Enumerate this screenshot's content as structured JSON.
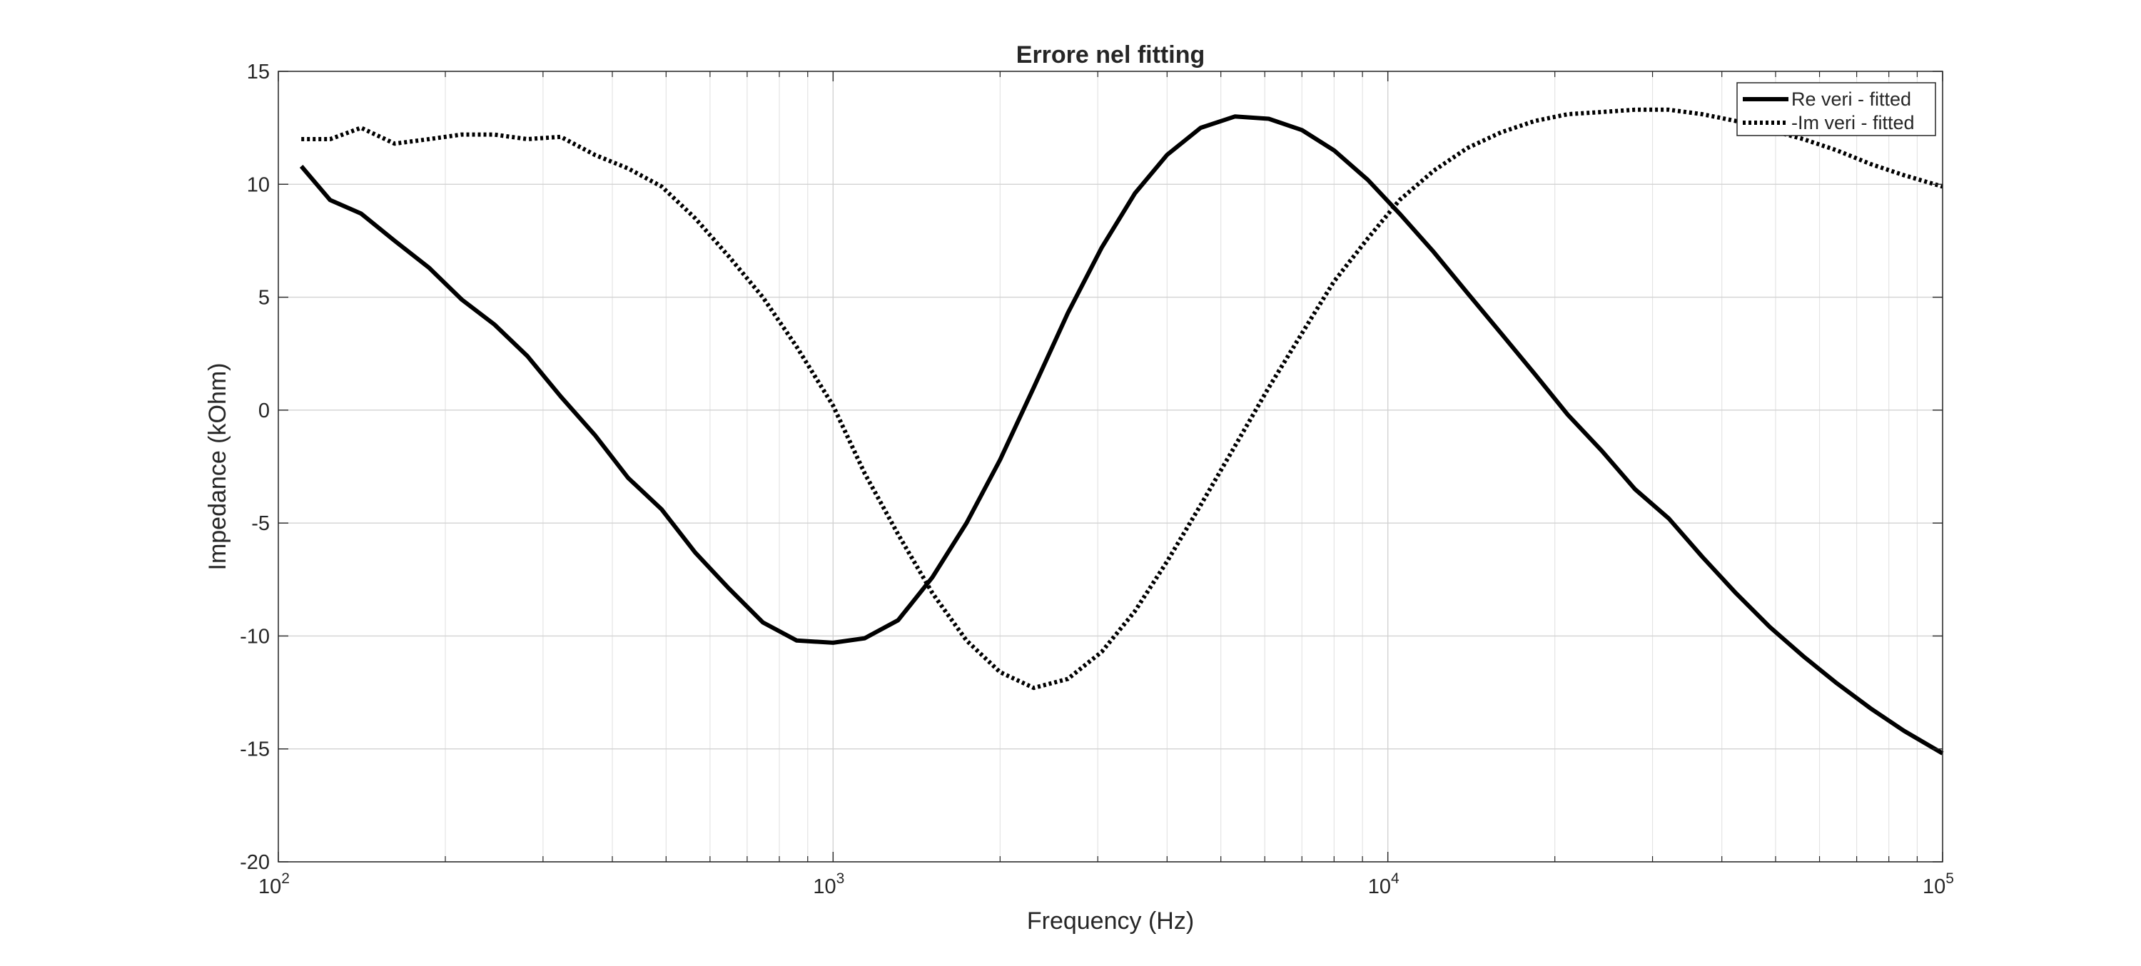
{
  "chart_data": {
    "type": "line",
    "title": "Errore nel fitting",
    "xlabel": "Frequency (Hz)",
    "ylabel": "Impedance (kOhm)",
    "xscale": "log",
    "xlim": [
      100,
      100000
    ],
    "ylim": [
      -20,
      15
    ],
    "grid": true,
    "legend_placement": "top-right",
    "x_ticks": [
      {
        "base": "10",
        "exp": "2"
      },
      {
        "base": "10",
        "exp": "3"
      },
      {
        "base": "10",
        "exp": "4"
      },
      {
        "base": "10",
        "exp": "5"
      }
    ],
    "y_ticks": [
      "15",
      "10",
      "5",
      "0",
      "-5",
      "-10",
      "-15",
      "-20"
    ],
    "y_tick_values": [
      15,
      10,
      5,
      0,
      -5,
      -10,
      -15,
      -20
    ],
    "x": [
      110,
      124,
      141,
      162,
      187,
      214,
      245,
      281,
      323,
      372,
      427,
      491,
      564,
      649,
      747,
      860,
      1000,
      1140,
      1310,
      1510,
      1740,
      2000,
      2300,
      2650,
      3050,
      3500,
      4000,
      4600,
      5300,
      6100,
      7000,
      8000,
      9200,
      10500,
      12100,
      13900,
      16000,
      18400,
      21100,
      24300,
      27900,
      32100,
      36900,
      42400,
      48800,
      56100,
      64500,
      74100,
      85200,
      100000
    ],
    "series": [
      {
        "name": "Re veri - fitted",
        "style": "solid",
        "color": "#000000",
        "values": [
          10.8,
          9.3,
          8.7,
          7.5,
          6.3,
          4.9,
          3.8,
          2.4,
          0.6,
          -1.1,
          -3.0,
          -4.4,
          -6.3,
          -7.9,
          -9.4,
          -10.2,
          -10.3,
          -10.1,
          -9.3,
          -7.4,
          -5.0,
          -2.2,
          1.0,
          4.3,
          7.2,
          9.6,
          11.3,
          12.5,
          13.0,
          12.9,
          12.4,
          11.5,
          10.2,
          8.7,
          7.0,
          5.2,
          3.4,
          1.6,
          -0.2,
          -1.8,
          -3.5,
          -4.8,
          -6.5,
          -8.1,
          -9.6,
          -10.9,
          -12.1,
          -13.2,
          -14.2,
          -15.2
        ]
      },
      {
        "name": "-Im veri - fitted",
        "style": "dotted",
        "color": "#000000",
        "values": [
          12.0,
          12.0,
          12.5,
          11.8,
          12.0,
          12.2,
          12.2,
          12.0,
          12.1,
          11.3,
          10.7,
          9.9,
          8.5,
          6.8,
          5.0,
          2.8,
          0.2,
          -2.8,
          -5.5,
          -8.1,
          -10.2,
          -11.6,
          -12.3,
          -11.9,
          -10.7,
          -8.9,
          -6.7,
          -4.2,
          -1.6,
          1.0,
          3.4,
          5.7,
          7.6,
          9.3,
          10.6,
          11.6,
          12.3,
          12.8,
          13.1,
          13.2,
          13.3,
          13.3,
          13.1,
          12.8,
          12.4,
          12.0,
          11.5,
          10.9,
          10.4,
          9.9
        ]
      }
    ]
  }
}
